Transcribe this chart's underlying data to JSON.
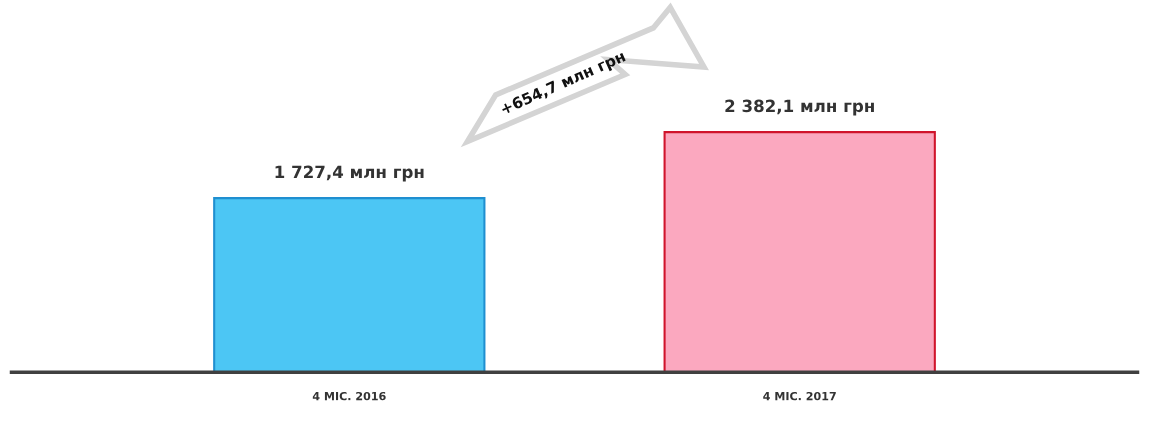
{
  "chart_data": {
    "type": "bar",
    "categories": [
      "4 МІС. 2016",
      "4 МІС. 2017"
    ],
    "values": [
      1727.4,
      2382.1
    ],
    "colors": [
      "#4cc6f4",
      "#fba8bf"
    ],
    "value_labels": [
      "1 727,4 млн грн",
      "2 382,1 млн грн"
    ],
    "annotations": [
      "+654,7 млн грн"
    ],
    "grid": false,
    "legend": false
  }
}
